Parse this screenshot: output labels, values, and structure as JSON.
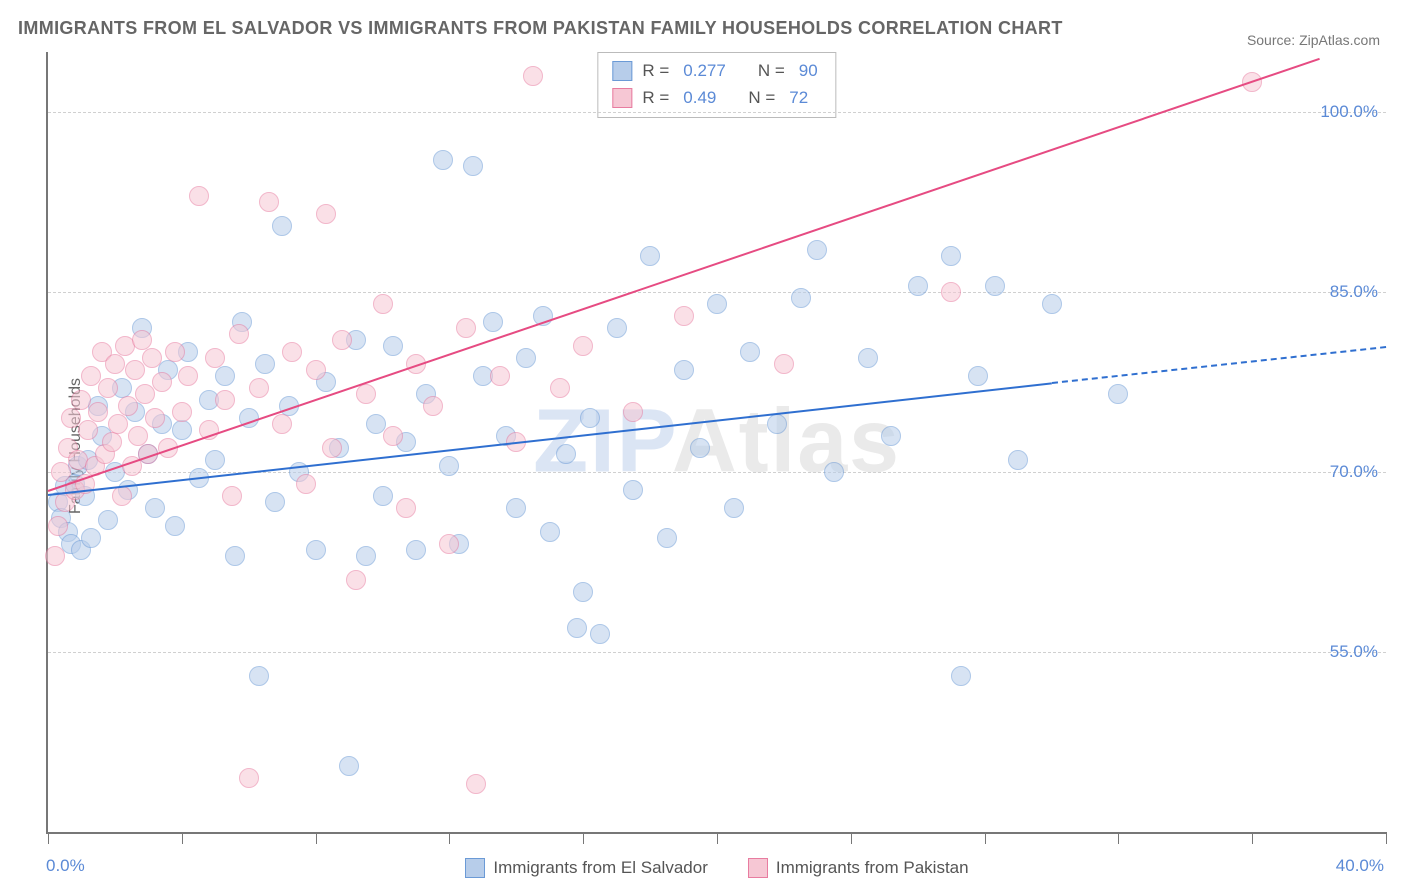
{
  "title": "IMMIGRANTS FROM EL SALVADOR VS IMMIGRANTS FROM PAKISTAN FAMILY HOUSEHOLDS CORRELATION CHART",
  "source": "Source: ZipAtlas.com",
  "ylabel": "Family Households",
  "watermark_a": "ZIP",
  "watermark_b": "Atlas",
  "chart": {
    "type": "scatter",
    "xlim": [
      0,
      40
    ],
    "ylim": [
      40,
      105
    ],
    "xticks": [
      0,
      4,
      8,
      12,
      16,
      20,
      24,
      28,
      32,
      36,
      40
    ],
    "xtick_labels": {
      "0": "0.0%",
      "40": "40.0%"
    },
    "yticks": [
      55,
      70,
      85,
      100
    ],
    "ytick_labels": [
      "55.0%",
      "70.0%",
      "85.0%",
      "100.0%"
    ],
    "grid_color": "#d0d0d0",
    "axis_color": "#777777",
    "background": "#ffffff",
    "marker_radius": 9,
    "marker_opacity": 0.55,
    "series": [
      {
        "name": "Immigrants from El Salvador",
        "color_fill": "#b7cdea",
        "color_stroke": "#6b9ad6",
        "r": 0.277,
        "n": 90,
        "trend": {
          "x1": 0,
          "y1": 68.2,
          "x2": 30,
          "y2": 77.5,
          "dash_from_x": 30,
          "x3": 40,
          "y3": 80.5,
          "color": "#2f6fd0",
          "width": 2
        },
        "points": [
          [
            0.3,
            67.5
          ],
          [
            0.4,
            66.2
          ],
          [
            0.5,
            68.8
          ],
          [
            0.6,
            65.0
          ],
          [
            0.7,
            64.0
          ],
          [
            0.8,
            69.0
          ],
          [
            0.9,
            70.5
          ],
          [
            1.0,
            63.5
          ],
          [
            1.1,
            68.0
          ],
          [
            1.2,
            71.0
          ],
          [
            1.3,
            64.5
          ],
          [
            1.5,
            75.5
          ],
          [
            1.6,
            73.0
          ],
          [
            1.8,
            66.0
          ],
          [
            2.0,
            70.0
          ],
          [
            2.2,
            77.0
          ],
          [
            2.4,
            68.5
          ],
          [
            2.6,
            75.0
          ],
          [
            2.8,
            82.0
          ],
          [
            3.0,
            71.5
          ],
          [
            3.2,
            67.0
          ],
          [
            3.4,
            74.0
          ],
          [
            3.6,
            78.5
          ],
          [
            3.8,
            65.5
          ],
          [
            4.0,
            73.5
          ],
          [
            4.2,
            80.0
          ],
          [
            4.5,
            69.5
          ],
          [
            4.8,
            76.0
          ],
          [
            5.0,
            71.0
          ],
          [
            5.3,
            78.0
          ],
          [
            5.6,
            63.0
          ],
          [
            5.8,
            82.5
          ],
          [
            6.0,
            74.5
          ],
          [
            6.3,
            53.0
          ],
          [
            6.5,
            79.0
          ],
          [
            6.8,
            67.5
          ],
          [
            7.0,
            90.5
          ],
          [
            7.2,
            75.5
          ],
          [
            7.5,
            70.0
          ],
          [
            8.0,
            63.5
          ],
          [
            8.3,
            77.5
          ],
          [
            8.7,
            72.0
          ],
          [
            9.0,
            45.5
          ],
          [
            9.2,
            81.0
          ],
          [
            9.5,
            63.0
          ],
          [
            9.8,
            74.0
          ],
          [
            10.0,
            68.0
          ],
          [
            10.3,
            80.5
          ],
          [
            10.7,
            72.5
          ],
          [
            11.0,
            63.5
          ],
          [
            11.3,
            76.5
          ],
          [
            11.8,
            96.0
          ],
          [
            12.0,
            70.5
          ],
          [
            12.3,
            64.0
          ],
          [
            12.7,
            95.5
          ],
          [
            13.0,
            78.0
          ],
          [
            13.3,
            82.5
          ],
          [
            13.7,
            73.0
          ],
          [
            14.0,
            67.0
          ],
          [
            14.3,
            79.5
          ],
          [
            14.8,
            83.0
          ],
          [
            15.0,
            65.0
          ],
          [
            15.5,
            71.5
          ],
          [
            15.8,
            57.0
          ],
          [
            16.0,
            60.0
          ],
          [
            16.2,
            74.5
          ],
          [
            16.5,
            56.5
          ],
          [
            17.0,
            82.0
          ],
          [
            17.5,
            68.5
          ],
          [
            18.0,
            88.0
          ],
          [
            18.5,
            64.5
          ],
          [
            19.0,
            78.5
          ],
          [
            19.5,
            72.0
          ],
          [
            20.0,
            84.0
          ],
          [
            20.5,
            67.0
          ],
          [
            21.0,
            80.0
          ],
          [
            21.8,
            74.0
          ],
          [
            22.5,
            84.5
          ],
          [
            23.0,
            88.5
          ],
          [
            23.5,
            70.0
          ],
          [
            24.5,
            79.5
          ],
          [
            25.2,
            73.0
          ],
          [
            26.0,
            85.5
          ],
          [
            27.0,
            88.0
          ],
          [
            27.3,
            53.0
          ],
          [
            27.8,
            78.0
          ],
          [
            28.3,
            85.5
          ],
          [
            29.0,
            71.0
          ],
          [
            30.0,
            84.0
          ],
          [
            32.0,
            76.5
          ]
        ]
      },
      {
        "name": "Immigrants from Pakistan",
        "color_fill": "#f6c7d4",
        "color_stroke": "#e87ca0",
        "r": 0.49,
        "n": 72,
        "trend": {
          "x1": 0,
          "y1": 68.5,
          "x2": 38,
          "y2": 104.5,
          "color": "#e64b82",
          "width": 2
        },
        "points": [
          [
            0.2,
            63.0
          ],
          [
            0.3,
            65.5
          ],
          [
            0.4,
            70.0
          ],
          [
            0.5,
            67.5
          ],
          [
            0.6,
            72.0
          ],
          [
            0.7,
            74.5
          ],
          [
            0.8,
            68.5
          ],
          [
            0.9,
            71.0
          ],
          [
            1.0,
            76.0
          ],
          [
            1.1,
            69.0
          ],
          [
            1.2,
            73.5
          ],
          [
            1.3,
            78.0
          ],
          [
            1.4,
            70.5
          ],
          [
            1.5,
            75.0
          ],
          [
            1.6,
            80.0
          ],
          [
            1.7,
            71.5
          ],
          [
            1.8,
            77.0
          ],
          [
            1.9,
            72.5
          ],
          [
            2.0,
            79.0
          ],
          [
            2.1,
            74.0
          ],
          [
            2.2,
            68.0
          ],
          [
            2.3,
            80.5
          ],
          [
            2.4,
            75.5
          ],
          [
            2.5,
            70.5
          ],
          [
            2.6,
            78.5
          ],
          [
            2.7,
            73.0
          ],
          [
            2.8,
            81.0
          ],
          [
            2.9,
            76.5
          ],
          [
            3.0,
            71.5
          ],
          [
            3.1,
            79.5
          ],
          [
            3.2,
            74.5
          ],
          [
            3.4,
            77.5
          ],
          [
            3.6,
            72.0
          ],
          [
            3.8,
            80.0
          ],
          [
            4.0,
            75.0
          ],
          [
            4.2,
            78.0
          ],
          [
            4.5,
            93.0
          ],
          [
            4.8,
            73.5
          ],
          [
            5.0,
            79.5
          ],
          [
            5.3,
            76.0
          ],
          [
            5.5,
            68.0
          ],
          [
            5.7,
            81.5
          ],
          [
            6.0,
            44.5
          ],
          [
            6.3,
            77.0
          ],
          [
            6.6,
            92.5
          ],
          [
            7.0,
            74.0
          ],
          [
            7.3,
            80.0
          ],
          [
            7.7,
            69.0
          ],
          [
            8.0,
            78.5
          ],
          [
            8.3,
            91.5
          ],
          [
            8.5,
            72.0
          ],
          [
            8.8,
            81.0
          ],
          [
            9.2,
            61.0
          ],
          [
            9.5,
            76.5
          ],
          [
            10.0,
            84.0
          ],
          [
            10.3,
            73.0
          ],
          [
            10.7,
            67.0
          ],
          [
            11.0,
            79.0
          ],
          [
            11.5,
            75.5
          ],
          [
            12.0,
            64.0
          ],
          [
            12.5,
            82.0
          ],
          [
            12.8,
            44.0
          ],
          [
            13.5,
            78.0
          ],
          [
            14.0,
            72.5
          ],
          [
            14.5,
            103.0
          ],
          [
            15.3,
            77.0
          ],
          [
            16.0,
            80.5
          ],
          [
            17.5,
            75.0
          ],
          [
            19.0,
            83.0
          ],
          [
            22.0,
            79.0
          ],
          [
            27.0,
            85.0
          ],
          [
            36.0,
            102.5
          ]
        ]
      }
    ]
  },
  "legend_top": {
    "r_label": "R  =",
    "n_label": "N  ="
  },
  "bottom_legend": [
    {
      "label": "Immigrants from El Salvador",
      "fill": "#b7cdea",
      "stroke": "#6b9ad6"
    },
    {
      "label": "Immigrants from Pakistan",
      "fill": "#f6c7d4",
      "stroke": "#e87ca0"
    }
  ]
}
